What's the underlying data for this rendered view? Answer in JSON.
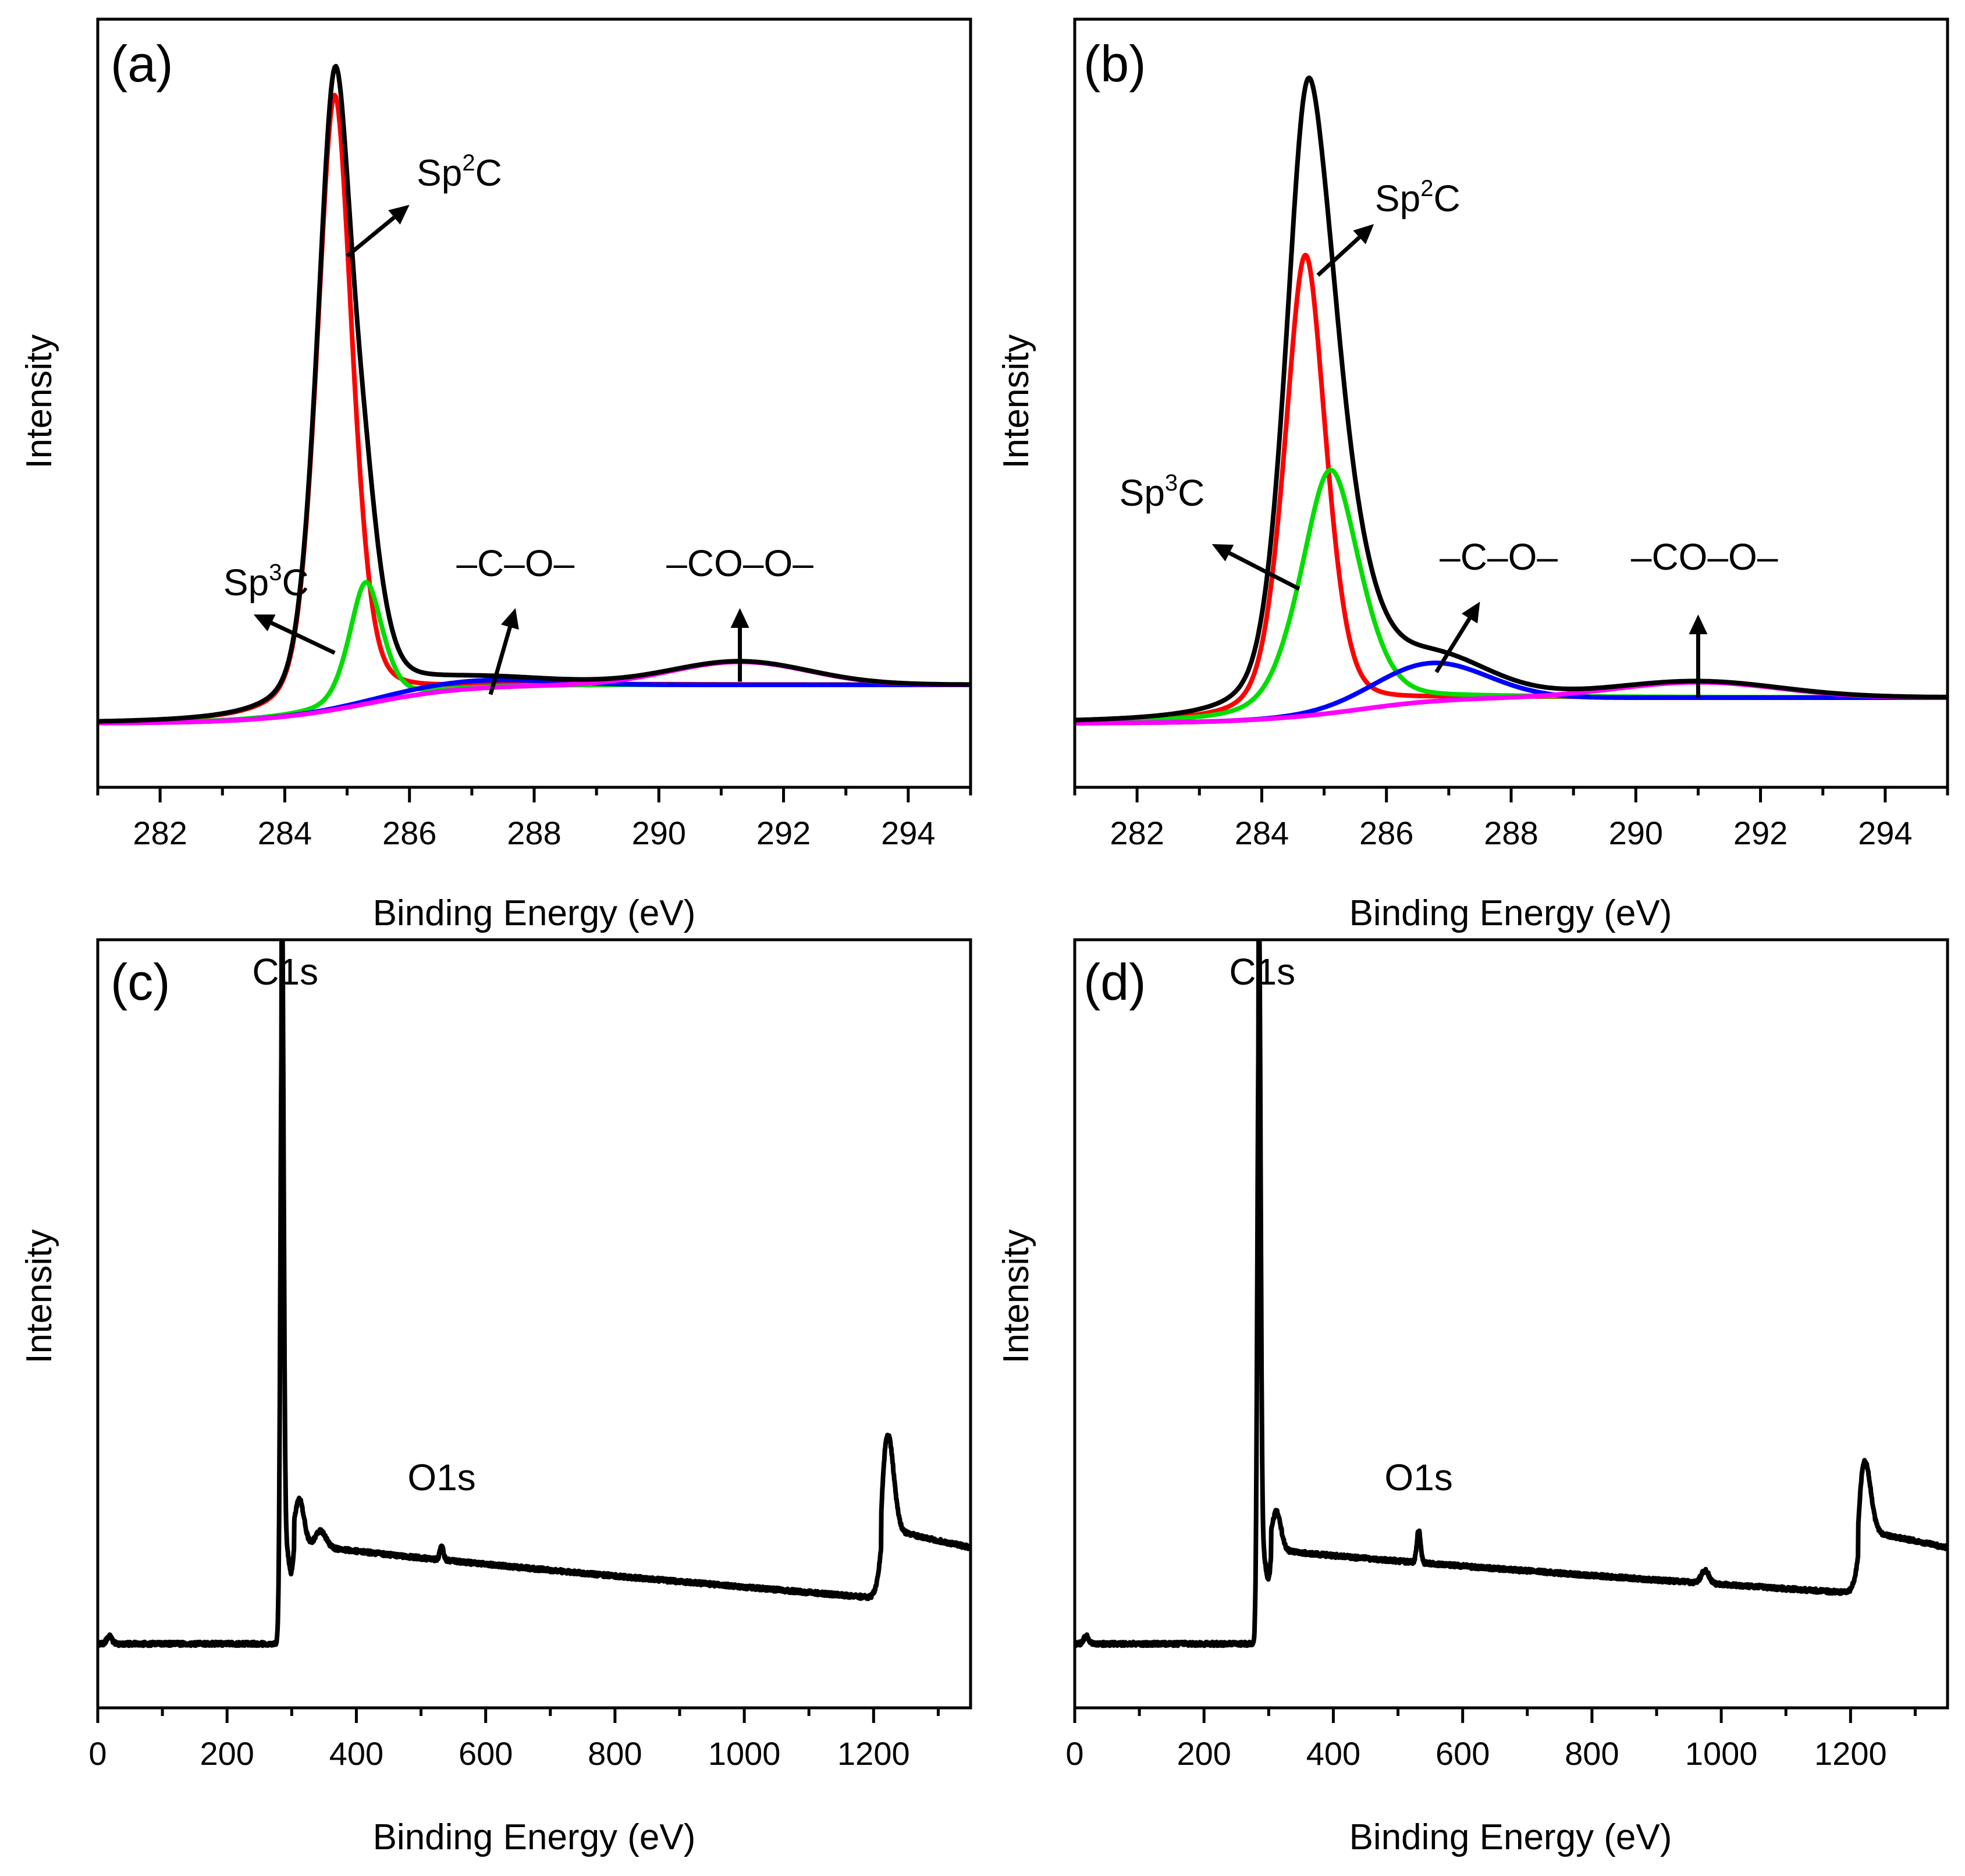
{
  "colors": {
    "envelope": "#000000",
    "sp2c": "#ff0000",
    "sp3c": "#00dd00",
    "c_o": "#0000ff",
    "co_o": "#ff00ff"
  },
  "chart_data": [
    {
      "id": "a",
      "type": "line",
      "panel_label": "(a)",
      "xlabel": "Binding Energy (eV)",
      "ylabel": "Intensity",
      "xlim": [
        281,
        295
      ],
      "ylim": [
        -0.1,
        1.1
      ],
      "xticks": [
        282,
        284,
        286,
        288,
        290,
        292,
        294
      ],
      "tick_labels": [
        "282",
        "284",
        "286",
        "288",
        "290",
        "292",
        "294"
      ],
      "components": [
        {
          "name": "Sp2C",
          "kind": "peak",
          "center": 284.8,
          "amp": 0.96,
          "width": 0.3,
          "base": 0.0,
          "color_key": "sp2c"
        },
        {
          "name": "Sp3C",
          "kind": "peak",
          "center": 285.3,
          "amp": 0.19,
          "width": 0.28,
          "base": 0.0,
          "color_key": "sp3c"
        },
        {
          "name": "-C-O-",
          "kind": "step_peak",
          "center": 287.0,
          "amp": 0.012,
          "width": 1.2,
          "base": 0.0,
          "step": 0.03,
          "step_center": 285.5,
          "step_width": 0.7,
          "color_key": "c_o"
        },
        {
          "name": "-CO-O-",
          "kind": "step_peak",
          "center": 291.3,
          "amp": 0.036,
          "width": 1.1,
          "base": 0.0,
          "step": 0.03,
          "step_center": 285.0,
          "step_width": 0.9,
          "color_key": "co_o"
        },
        {
          "name": "Envelope",
          "kind": "sum",
          "color_key": "envelope"
        }
      ],
      "annotations": [
        {
          "main": "Sp",
          "sup": "2",
          "tail": "C",
          "text_x": 286.8,
          "text_y": 0.84,
          "arrow_from": [
            285.0,
            0.73
          ],
          "arrow_to": [
            286.0,
            0.81
          ]
        },
        {
          "main": "Sp",
          "sup": "3",
          "tail": "C",
          "text_x": 283.7,
          "text_y": 0.2,
          "arrow_from": [
            284.8,
            0.11
          ],
          "arrow_to": [
            283.5,
            0.17
          ]
        },
        {
          "main": "–C–O–",
          "sup": "",
          "tail": "",
          "text_x": 287.7,
          "text_y": 0.23,
          "arrow_from": [
            287.3,
            0.045
          ],
          "arrow_to": [
            287.7,
            0.18
          ]
        },
        {
          "main": "–CO–O–",
          "sup": "",
          "tail": "",
          "text_x": 291.3,
          "text_y": 0.23,
          "arrow_from": [
            291.3,
            0.065
          ],
          "arrow_to": [
            291.3,
            0.18
          ]
        }
      ]
    },
    {
      "id": "b",
      "type": "line",
      "panel_label": "(b)",
      "xlabel": "Binding Energy (eV)",
      "ylabel": "Intensity",
      "xlim": [
        281,
        295
      ],
      "ylim": [
        -0.1,
        1.1
      ],
      "xticks": [
        282,
        284,
        286,
        288,
        290,
        292,
        294
      ],
      "tick_labels": [
        "282",
        "284",
        "286",
        "288",
        "290",
        "292",
        "294"
      ],
      "components": [
        {
          "name": "Sp2C",
          "kind": "peak",
          "center": 284.7,
          "amp": 0.72,
          "width": 0.35,
          "base": 0.0,
          "color_key": "sp2c"
        },
        {
          "name": "Sp3C",
          "kind": "peak",
          "center": 285.1,
          "amp": 0.38,
          "width": 0.5,
          "base": 0.0,
          "color_key": "sp3c"
        },
        {
          "name": "-C-O-",
          "kind": "step_peak",
          "center": 286.7,
          "amp": 0.06,
          "width": 0.9,
          "base": 0.0,
          "step": 0.02,
          "step_center": 285.8,
          "step_width": 0.6,
          "color_key": "c_o"
        },
        {
          "name": "-CO-O-",
          "kind": "step_peak",
          "center": 291.0,
          "amp": 0.024,
          "width": 1.3,
          "base": 0.0,
          "step": 0.02,
          "step_center": 284.9,
          "step_width": 0.9,
          "color_key": "co_o"
        },
        {
          "name": "Envelope",
          "kind": "sum",
          "color_key": "envelope"
        }
      ],
      "annotations": [
        {
          "main": "Sp",
          "sup": "2",
          "tail": "C",
          "text_x": 286.5,
          "text_y": 0.8,
          "arrow_from": [
            284.9,
            0.7
          ],
          "arrow_to": [
            285.8,
            0.78
          ]
        },
        {
          "main": "Sp",
          "sup": "3",
          "tail": "C",
          "text_x": 282.4,
          "text_y": 0.34,
          "arrow_from": [
            284.6,
            0.21
          ],
          "arrow_to": [
            283.2,
            0.28
          ]
        },
        {
          "main": "–C–O–",
          "sup": "",
          "tail": "",
          "text_x": 287.8,
          "text_y": 0.24,
          "arrow_from": [
            286.8,
            0.08
          ],
          "arrow_to": [
            287.5,
            0.19
          ]
        },
        {
          "main": "–CO–O–",
          "sup": "",
          "tail": "",
          "text_x": 291.1,
          "text_y": 0.24,
          "arrow_from": [
            291.0,
            0.04
          ],
          "arrow_to": [
            291.0,
            0.17
          ]
        }
      ]
    },
    {
      "id": "c",
      "type": "line",
      "panel_label": "(c)",
      "xlabel": "Binding Energy (eV)",
      "ylabel": "Intensity",
      "xlim": [
        0,
        1350
      ],
      "ylim": [
        -0.1,
        1.1
      ],
      "xticks": [
        0,
        200,
        400,
        600,
        800,
        1000,
        1200
      ],
      "tick_labels": [
        "0",
        "200",
        "400",
        "600",
        "800",
        "1000",
        "1200"
      ],
      "spectrum": {
        "baseline": 0.0,
        "edge_at": 284,
        "plateau_start": 0.16,
        "plateau_end": 0.06,
        "peaks": [
          {
            "label": "C1s",
            "center": 285,
            "height": 1.0,
            "width": 2.5
          },
          {
            "label": "O1s",
            "center": 532,
            "height": 0.02,
            "width": 3
          }
        ],
        "features": [
          {
            "center": 18,
            "height": 0.012,
            "width": 4
          },
          {
            "center": 312,
            "height": 0.07,
            "width": 7
          },
          {
            "center": 345,
            "height": 0.025,
            "width": 8
          },
          {
            "center": 1222,
            "height": 0.15,
            "width": 9
          }
        ],
        "auger_step": {
          "at": 1212,
          "height": 0.11
        },
        "noise": 0.003
      },
      "annotations": [
        {
          "text": "C1s",
          "x": 290,
          "y": 1.03
        },
        {
          "text": "O1s",
          "x": 532,
          "y": 0.24
        }
      ]
    },
    {
      "id": "d",
      "type": "line",
      "panel_label": "(d)",
      "xlabel": "Binding Energy (eV)",
      "ylabel": "Intensity",
      "xlim": [
        0,
        1350
      ],
      "ylim": [
        -0.1,
        1.1
      ],
      "xticks": [
        0,
        200,
        400,
        600,
        800,
        1000,
        1200
      ],
      "tick_labels": [
        "0",
        "200",
        "400",
        "600",
        "800",
        "1000",
        "1200"
      ],
      "spectrum": {
        "baseline": 0.0,
        "edge_at": 284,
        "plateau_start": 0.15,
        "plateau_end": 0.07,
        "peaks": [
          {
            "label": "C1s",
            "center": 285,
            "height": 1.0,
            "width": 2.5
          },
          {
            "label": "O1s",
            "center": 532,
            "height": 0.05,
            "width": 3
          }
        ],
        "features": [
          {
            "center": 18,
            "height": 0.012,
            "width": 4
          },
          {
            "center": 312,
            "height": 0.06,
            "width": 7
          },
          {
            "center": 975,
            "height": 0.02,
            "width": 6
          },
          {
            "center": 1222,
            "height": 0.11,
            "width": 9
          }
        ],
        "auger_step": {
          "at": 1212,
          "height": 0.1
        },
        "noise": 0.003
      },
      "annotations": [
        {
          "text": "C1s",
          "x": 290,
          "y": 1.03
        },
        {
          "text": "O1s",
          "x": 532,
          "y": 0.24
        }
      ]
    }
  ]
}
